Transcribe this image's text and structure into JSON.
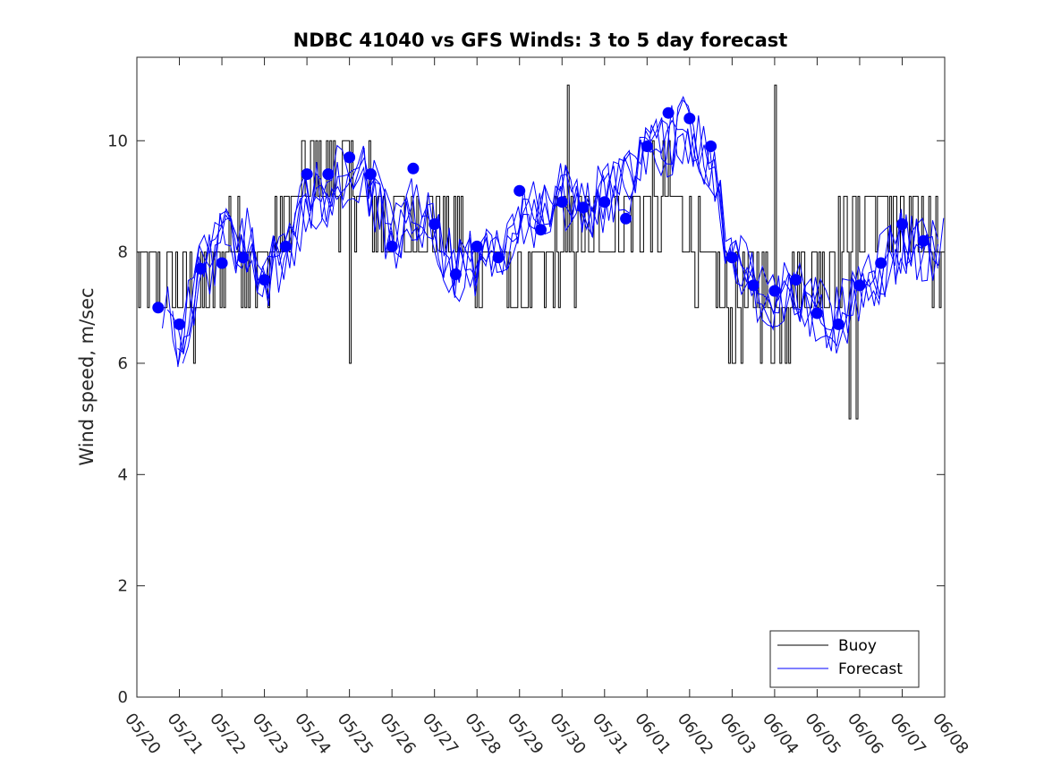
{
  "chart_data": {
    "type": "line",
    "title": "NDBC 41040 vs GFS Winds: 3 to 5 day forecast",
    "xlabel": "",
    "ylabel": "Wind speed, m/sec",
    "x_tick_labels": [
      "05/20",
      "05/21",
      "05/22",
      "05/23",
      "05/24",
      "05/25",
      "05/26",
      "05/27",
      "05/28",
      "05/29",
      "05/30",
      "05/31",
      "06/01",
      "06/02",
      "06/03",
      "06/04",
      "06/05",
      "06/06",
      "06/07",
      "06/08"
    ],
    "y_tick_labels": [
      "0",
      "2",
      "4",
      "6",
      "8",
      "10"
    ],
    "ylim": [
      0,
      11.5
    ],
    "grid": false,
    "legend_placement": "bottom-right",
    "legend": [
      {
        "name": "Buoy",
        "color": "#000000"
      },
      {
        "name": "Forecast",
        "color": "#0000ff"
      }
    ],
    "colors": {
      "buoy": "#000000",
      "forecast": "#0000ff",
      "marker": "#0000ff"
    },
    "markers": {
      "name": "",
      "x_day": [
        0.5,
        1.0,
        1.5,
        2.0,
        2.5,
        3.0,
        3.5,
        4.0,
        4.5,
        5.0,
        5.5,
        6.0,
        6.5,
        7.0,
        7.5,
        8.0,
        8.5,
        9.0,
        9.5,
        10.0,
        10.5,
        11.0,
        11.5,
        12.0,
        12.5,
        13.0,
        13.5,
        14.0,
        14.5,
        15.0,
        15.5,
        16.0,
        16.5,
        17.0,
        17.5,
        18.0,
        18.5
      ],
      "y": [
        7.0,
        6.7,
        7.7,
        7.8,
        7.9,
        7.5,
        8.1,
        9.4,
        9.4,
        9.7,
        9.4,
        8.1,
        9.5,
        8.5,
        7.6,
        8.1,
        7.9,
        9.1,
        8.4,
        8.9,
        8.8,
        8.9,
        8.6,
        9.9,
        10.5,
        10.4,
        9.9,
        7.9,
        7.4,
        7.3,
        7.5,
        6.9,
        6.7,
        7.4,
        7.8,
        8.5,
        8.2
      ]
    },
    "buoy_anchor_days": [
      0,
      0.5,
      1.0,
      1.4,
      1.8,
      2.2,
      2.6,
      3.0,
      3.5,
      4.0,
      4.5,
      5.0,
      5.5,
      6.0,
      6.5,
      7.0,
      7.5,
      8.0,
      8.5,
      9.0,
      9.5,
      10.0,
      10.5,
      11.0,
      11.5,
      12.0,
      12.5,
      13.0,
      13.5,
      14.0,
      14.5,
      15.0,
      15.5,
      16.0,
      16.5,
      17.0,
      17.5,
      18.0,
      19.0
    ],
    "buoy_anchor_values": [
      7.6,
      7.3,
      7.2,
      7.0,
      7.5,
      8.4,
      8.0,
      7.8,
      8.7,
      9.3,
      9.3,
      9.1,
      9.0,
      8.5,
      8.5,
      8.6,
      8.2,
      7.8,
      7.9,
      7.3,
      7.6,
      8.0,
      8.1,
      8.3,
      8.6,
      8.8,
      9.0,
      8.3,
      7.4,
      7.0,
      7.4,
      6.9,
      7.2,
      7.6,
      8.0,
      8.4,
      8.9,
      8.3,
      8.0
    ],
    "forecast_anchor_days": [
      0.6,
      1.0,
      1.5,
      2.0,
      2.5,
      3.0,
      3.5,
      4.0,
      4.5,
      5.0,
      5.5,
      6.0,
      6.5,
      7.0,
      7.5,
      8.0,
      8.5,
      9.0,
      9.5,
      10.0,
      10.5,
      11.0,
      11.5,
      12.0,
      12.5,
      13.0,
      13.5,
      14.0,
      14.5,
      15.0,
      15.5,
      16.0,
      16.5,
      17.0,
      17.5,
      18.0,
      18.5,
      19.0
    ],
    "forecast_anchor_values": [
      7.0,
      6.3,
      7.6,
      8.2,
      8.3,
      7.6,
      7.8,
      9.0,
      9.1,
      9.6,
      9.2,
      8.2,
      8.8,
      8.3,
      7.7,
      7.8,
      7.8,
      8.8,
      8.6,
      9.0,
      8.8,
      9.0,
      9.2,
      9.7,
      10.0,
      10.2,
      9.5,
      7.9,
      7.4,
      7.2,
      7.3,
      7.0,
      6.8,
      7.2,
      7.7,
      8.2,
      8.1,
      8.0
    ]
  }
}
